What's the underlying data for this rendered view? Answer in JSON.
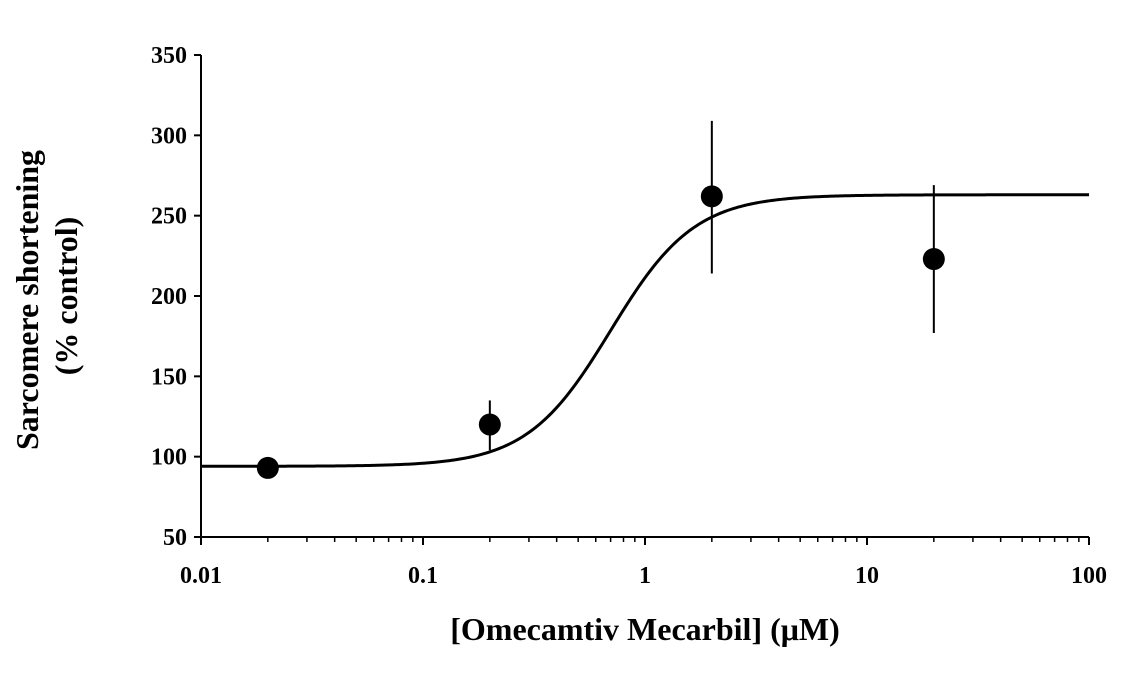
{
  "chart_data": {
    "type": "scatter",
    "xlabel": "[Omecamtiv Mecarbil] (μM)",
    "ylabel_lines": [
      "Sarcomere shortening",
      "(% control)"
    ],
    "xscale": "log",
    "xlim": [
      0.01,
      100
    ],
    "ylim": [
      50,
      350
    ],
    "x_ticks": [
      0.01,
      0.1,
      1,
      10,
      100
    ],
    "x_tick_labels": [
      "0.01",
      "0.1",
      "1",
      "10",
      "100"
    ],
    "y_ticks": [
      50,
      100,
      150,
      200,
      250,
      300,
      350
    ],
    "y_tick_labels": [
      "50",
      "100",
      "150",
      "200",
      "250",
      "300",
      "350"
    ],
    "grid": false,
    "legend": "none",
    "points": [
      {
        "x": 0.02,
        "y": 93,
        "err_low": 88,
        "err_high": 98
      },
      {
        "x": 0.2,
        "y": 120,
        "err_low": 104,
        "err_high": 135
      },
      {
        "x": 2,
        "y": 262,
        "err_low": 214,
        "err_high": 309
      },
      {
        "x": 20,
        "y": 223,
        "err_low": 177,
        "err_high": 269
      }
    ],
    "fit_curve": {
      "model": "hill",
      "bottom": 94,
      "top": 263,
      "ec50": 0.7,
      "hill": 2.3,
      "x_range": [
        0.01,
        100
      ]
    },
    "colors": {
      "marker": "#000000",
      "line": "#000000",
      "axis": "#000000"
    }
  }
}
